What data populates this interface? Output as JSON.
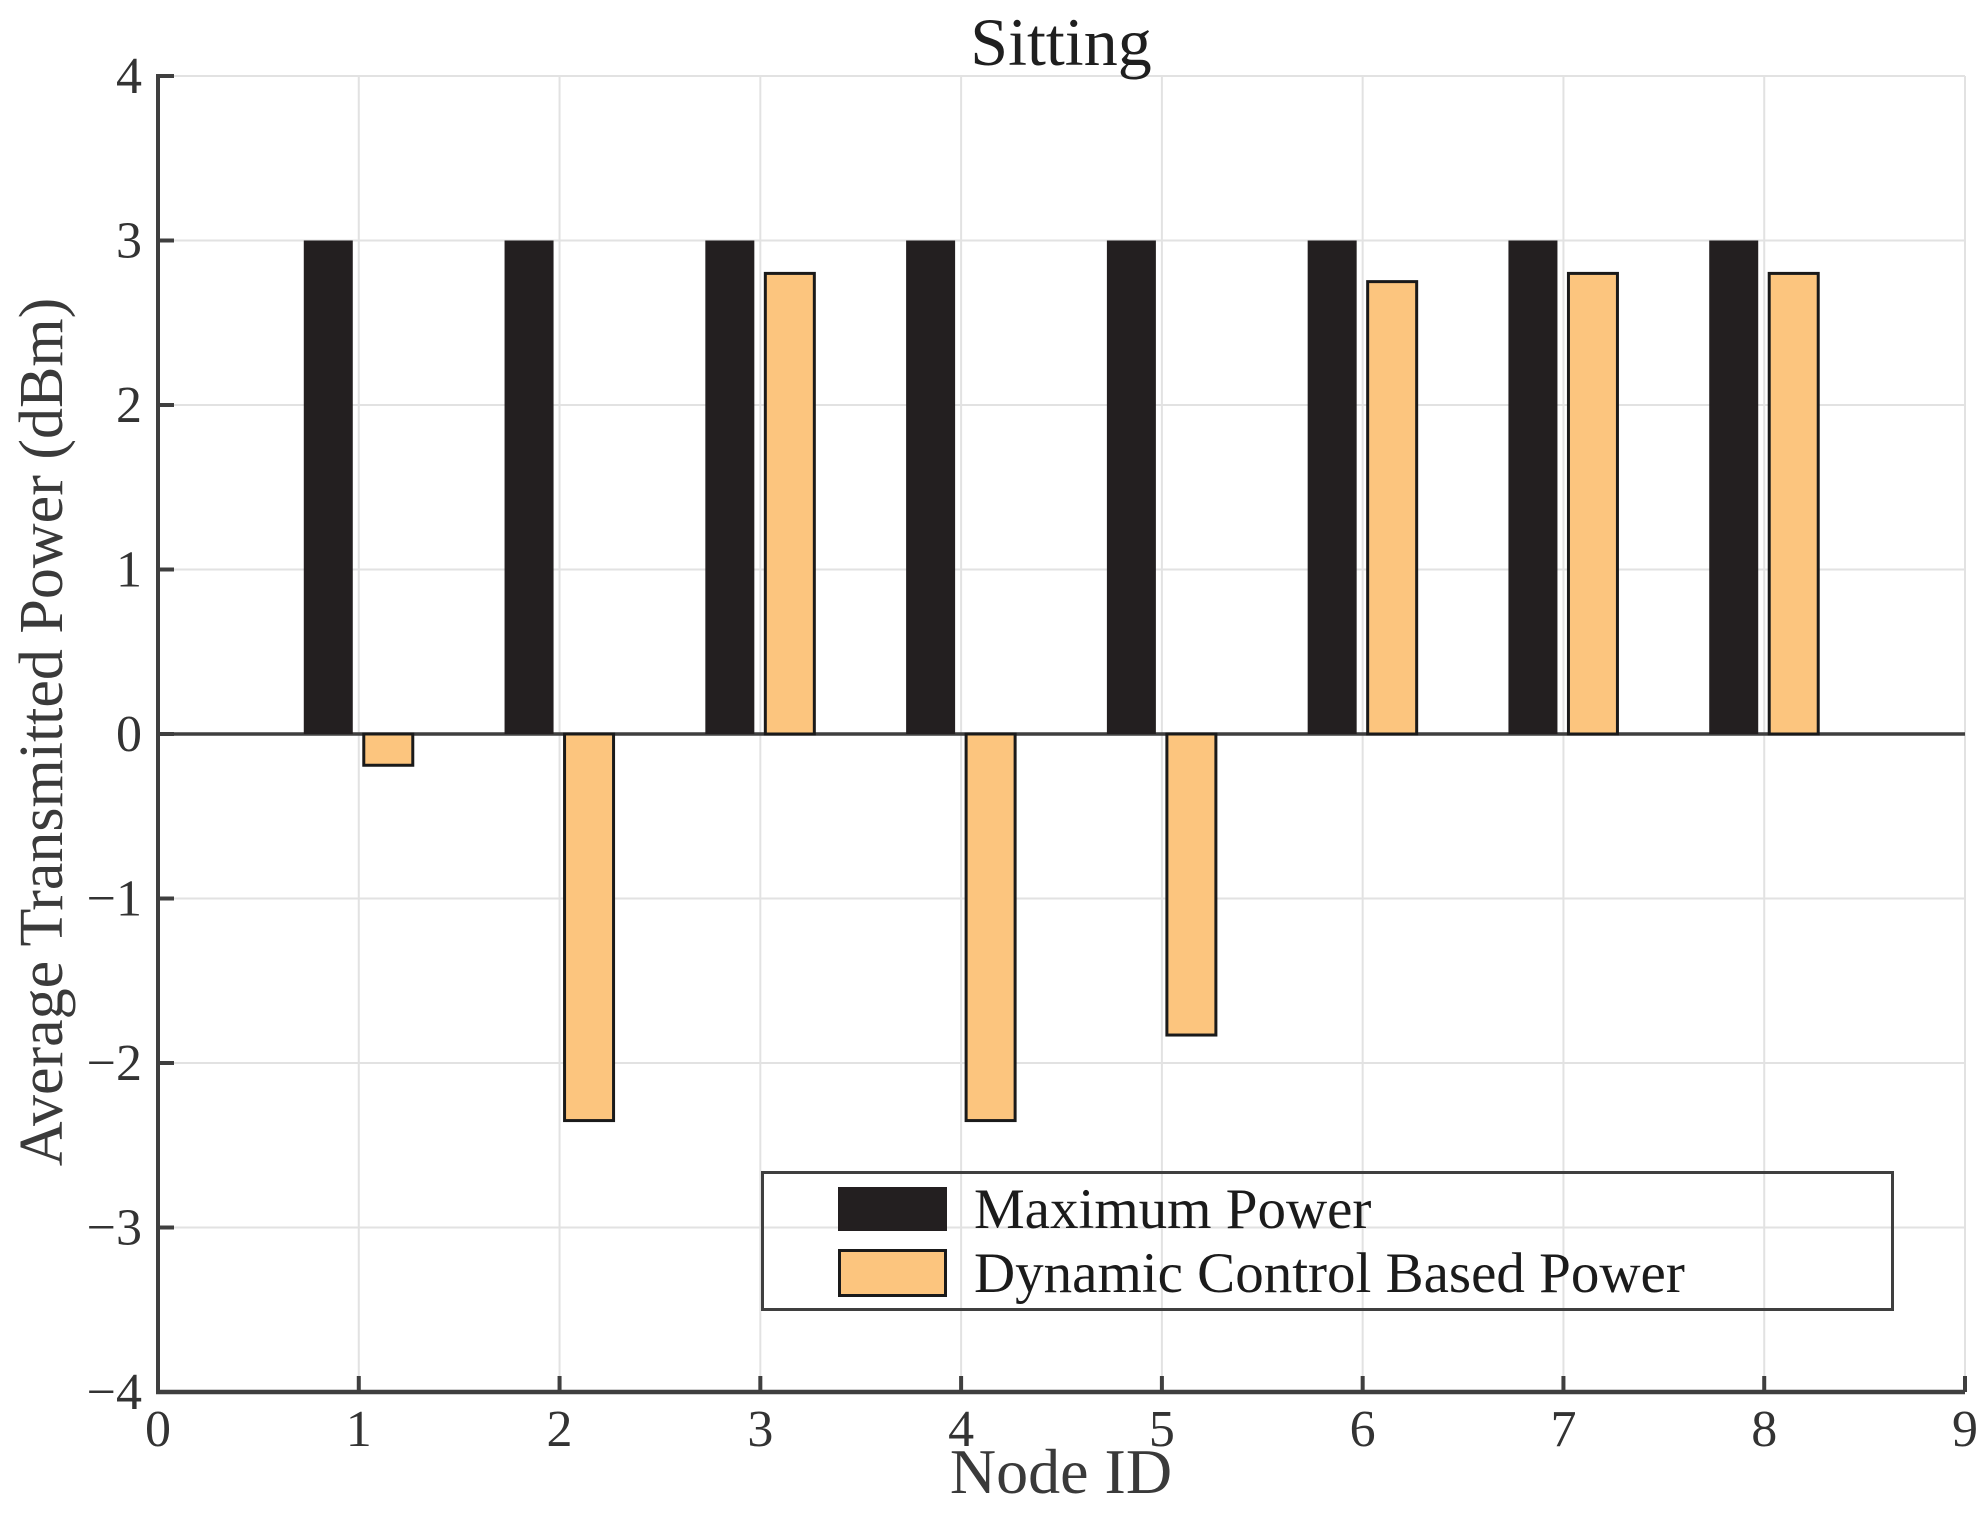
{
  "title": "Sitting",
  "axes": {
    "xlabel": "Node ID",
    "ylabel": "Average Transmitted Power (dBm)"
  },
  "legend": {
    "items": [
      {
        "label": "Maximum Power",
        "color": "#231f20"
      },
      {
        "label": "Dynamic Control Based Power",
        "color": "#fcc57e"
      }
    ]
  },
  "chart_data": {
    "type": "bar",
    "title": "Sitting",
    "xlabel": "Node ID",
    "ylabel": "Average Transmitted Power (dBm)",
    "categories": [
      1,
      2,
      3,
      4,
      5,
      6,
      7,
      8
    ],
    "series": [
      {
        "name": "Maximum Power",
        "color": "#231f20",
        "values": [
          3,
          3,
          3,
          3,
          3,
          3,
          3,
          3
        ]
      },
      {
        "name": "Dynamic Control Based Power",
        "color": "#fcc57e",
        "values": [
          -0.19,
          -2.35,
          2.8,
          -2.35,
          -1.83,
          2.75,
          2.8,
          2.8
        ]
      }
    ],
    "xlim": [
      0,
      9
    ],
    "ylim": [
      -4,
      4
    ],
    "xticks": [
      0,
      1,
      2,
      3,
      4,
      5,
      6,
      7,
      8,
      9
    ],
    "yticks": [
      -4,
      -3,
      -2,
      -1,
      0,
      1,
      2,
      3,
      4
    ],
    "grid": true,
    "legend_position": "inside-lower-right",
    "bar_outline": "#1a1a1a"
  },
  "colors": {
    "axis": "#3f3f3f",
    "grid": "#e2e2e2",
    "tick_text": "#333333",
    "title_text": "#1f1f1f",
    "background": "#ffffff"
  }
}
